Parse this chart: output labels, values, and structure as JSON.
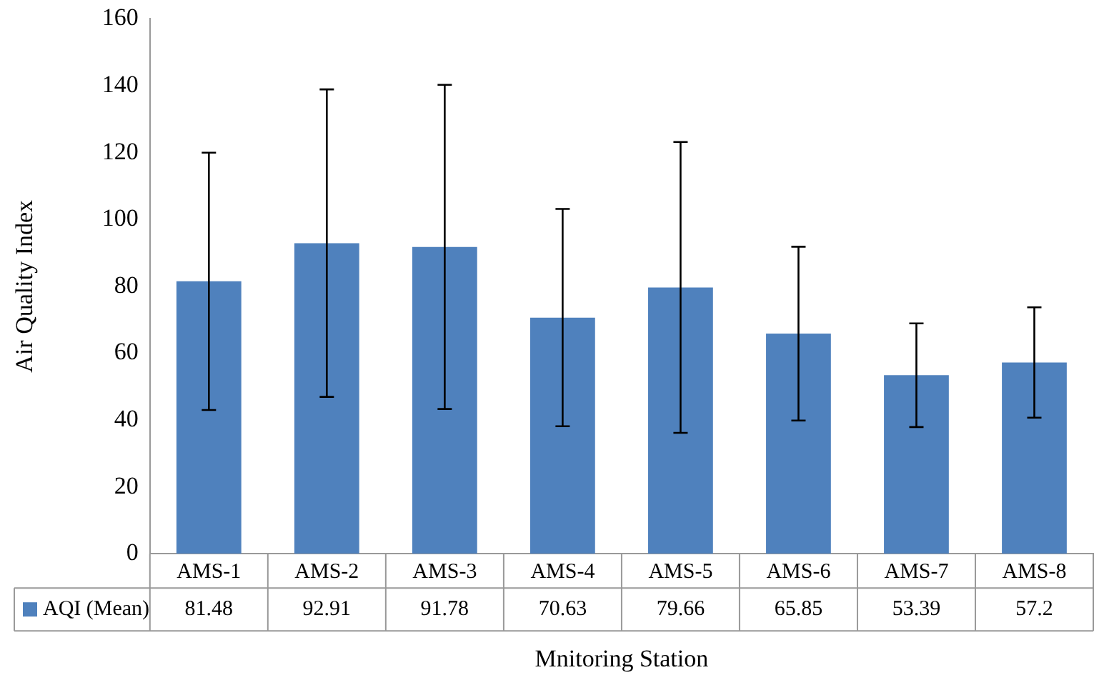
{
  "chart_data": {
    "type": "bar",
    "xlabel": "Mnitoring Station",
    "ylabel": "Air Quality Index",
    "categories": [
      "AMS-1",
      "AMS-2",
      "AMS-3",
      "AMS-4",
      "AMS-5",
      "AMS-6",
      "AMS-7",
      "AMS-8"
    ],
    "series": [
      {
        "name": "AQI (Mean)",
        "color": "#4f81bd",
        "values": [
          81.48,
          92.91,
          91.78,
          70.63,
          79.66,
          65.85,
          53.39,
          57.2
        ],
        "errors": [
          38.5,
          46,
          48.5,
          32.5,
          43.5,
          26,
          15.5,
          16.5
        ]
      }
    ],
    "data_labels": true,
    "legend": "bottom",
    "grid": false,
    "ylim": [
      0,
      160
    ],
    "yticks": [
      0,
      20,
      40,
      60,
      80,
      100,
      120,
      140,
      160
    ]
  }
}
